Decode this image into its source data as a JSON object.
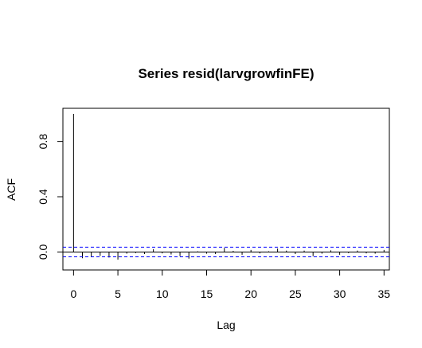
{
  "chart_data": {
    "type": "bar",
    "title": "Series  resid(larvgrowfinFE)",
    "xlabel": "Lag",
    "ylabel": "ACF",
    "xlim": [
      -1.2,
      35.6
    ],
    "ylim": [
      -0.13,
      1.04
    ],
    "x_ticks": [
      0,
      5,
      10,
      15,
      20,
      25,
      30,
      35
    ],
    "y_ticks": [
      0.0,
      0.4,
      0.8
    ],
    "y_tick_labels": [
      "0.0",
      "0.4",
      "0.8"
    ],
    "ci": 0.035,
    "grid": false,
    "x": [
      0,
      1,
      2,
      3,
      4,
      5,
      6,
      7,
      8,
      9,
      10,
      11,
      12,
      13,
      14,
      15,
      16,
      17,
      18,
      19,
      20,
      21,
      22,
      23,
      24,
      25,
      26,
      27,
      28,
      29,
      30,
      31,
      32,
      33,
      34,
      35
    ],
    "values": [
      1.0,
      -0.045,
      -0.035,
      -0.028,
      -0.04,
      -0.055,
      -0.012,
      -0.008,
      -0.015,
      0.02,
      -0.01,
      -0.018,
      -0.03,
      -0.048,
      0.005,
      -0.012,
      -0.015,
      0.03,
      0.008,
      -0.02,
      0.015,
      -0.01,
      0.005,
      0.025,
      0.01,
      -0.015,
      0.01,
      -0.03,
      -0.012,
      0.012,
      -0.02,
      -0.008,
      0.01,
      -0.01,
      -0.012,
      0.015
    ],
    "colors": {
      "bars": "#000000",
      "ci_line": "#0000ff",
      "zero_line": "#000000"
    }
  }
}
